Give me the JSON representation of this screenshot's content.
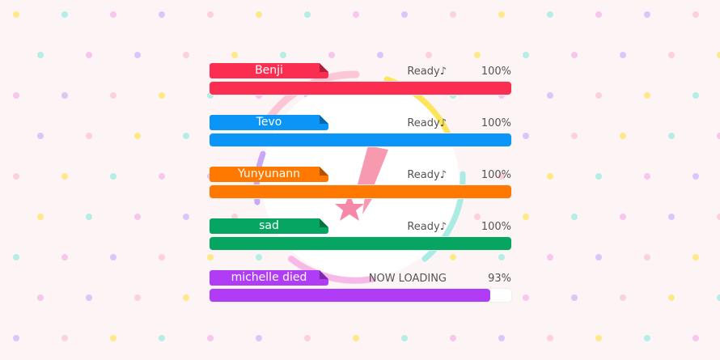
{
  "players": [
    {
      "name": "Benji",
      "status": "Ready♪",
      "percent_label": "100%",
      "progress": 100,
      "color": "#fb2e52"
    },
    {
      "name": "Tevo",
      "status": "Ready♪",
      "percent_label": "100%",
      "progress": 100,
      "color": "#0b95f6"
    },
    {
      "name": "Yunyunann",
      "status": "Ready♪",
      "percent_label": "100%",
      "progress": 100,
      "color": "#ff7800"
    },
    {
      "name": "sad",
      "status": "Ready♪",
      "percent_label": "100%",
      "progress": 100,
      "color": "#06a562"
    },
    {
      "name": "michelle died",
      "status": "NOW LOADING",
      "percent_label": "93%",
      "progress": 93,
      "color": "#b13cf6"
    }
  ]
}
